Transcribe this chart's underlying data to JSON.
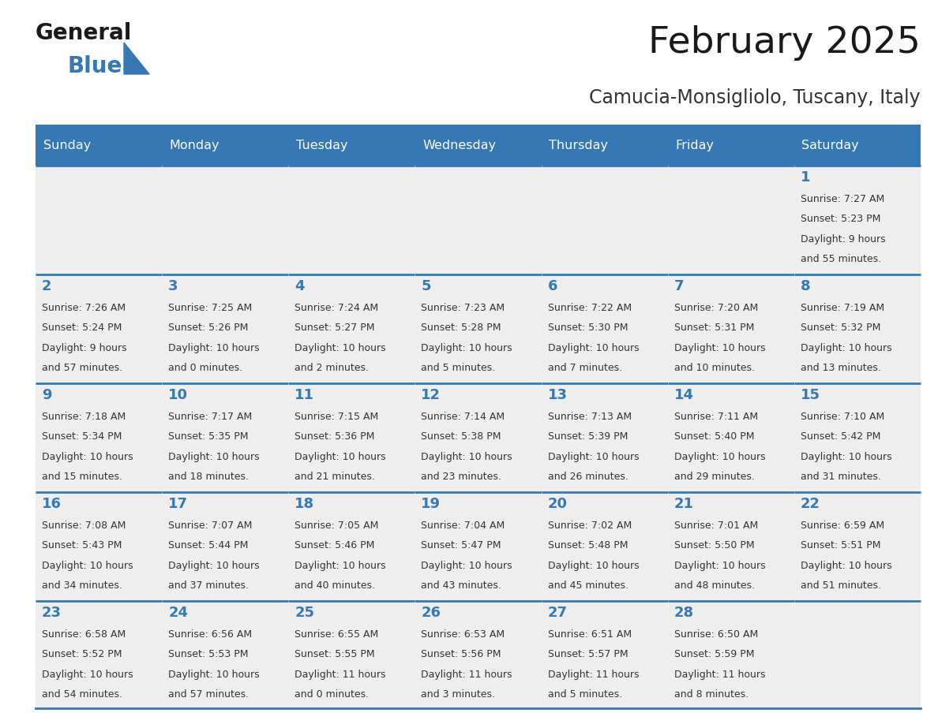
{
  "title": "February 2025",
  "subtitle": "Camucia-Monsigliolo, Tuscany, Italy",
  "header_bg": "#3578b5",
  "header_text": "#ffffff",
  "cell_bg": "#eeeeee",
  "cell_bg2": "#ffffff",
  "day_number_color": "#3578b5",
  "text_color": "#333333",
  "line_color": "#3578b5",
  "days_of_week": [
    "Sunday",
    "Monday",
    "Tuesday",
    "Wednesday",
    "Thursday",
    "Friday",
    "Saturday"
  ],
  "weeks": [
    [
      {
        "day": null,
        "sunrise": null,
        "sunset": null,
        "dl1": null,
        "dl2": null
      },
      {
        "day": null,
        "sunrise": null,
        "sunset": null,
        "dl1": null,
        "dl2": null
      },
      {
        "day": null,
        "sunrise": null,
        "sunset": null,
        "dl1": null,
        "dl2": null
      },
      {
        "day": null,
        "sunrise": null,
        "sunset": null,
        "dl1": null,
        "dl2": null
      },
      {
        "day": null,
        "sunrise": null,
        "sunset": null,
        "dl1": null,
        "dl2": null
      },
      {
        "day": null,
        "sunrise": null,
        "sunset": null,
        "dl1": null,
        "dl2": null
      },
      {
        "day": "1",
        "sunrise": "Sunrise: 7:27 AM",
        "sunset": "Sunset: 5:23 PM",
        "dl1": "Daylight: 9 hours",
        "dl2": "and 55 minutes."
      }
    ],
    [
      {
        "day": "2",
        "sunrise": "Sunrise: 7:26 AM",
        "sunset": "Sunset: 5:24 PM",
        "dl1": "Daylight: 9 hours",
        "dl2": "and 57 minutes."
      },
      {
        "day": "3",
        "sunrise": "Sunrise: 7:25 AM",
        "sunset": "Sunset: 5:26 PM",
        "dl1": "Daylight: 10 hours",
        "dl2": "and 0 minutes."
      },
      {
        "day": "4",
        "sunrise": "Sunrise: 7:24 AM",
        "sunset": "Sunset: 5:27 PM",
        "dl1": "Daylight: 10 hours",
        "dl2": "and 2 minutes."
      },
      {
        "day": "5",
        "sunrise": "Sunrise: 7:23 AM",
        "sunset": "Sunset: 5:28 PM",
        "dl1": "Daylight: 10 hours",
        "dl2": "and 5 minutes."
      },
      {
        "day": "6",
        "sunrise": "Sunrise: 7:22 AM",
        "sunset": "Sunset: 5:30 PM",
        "dl1": "Daylight: 10 hours",
        "dl2": "and 7 minutes."
      },
      {
        "day": "7",
        "sunrise": "Sunrise: 7:20 AM",
        "sunset": "Sunset: 5:31 PM",
        "dl1": "Daylight: 10 hours",
        "dl2": "and 10 minutes."
      },
      {
        "day": "8",
        "sunrise": "Sunrise: 7:19 AM",
        "sunset": "Sunset: 5:32 PM",
        "dl1": "Daylight: 10 hours",
        "dl2": "and 13 minutes."
      }
    ],
    [
      {
        "day": "9",
        "sunrise": "Sunrise: 7:18 AM",
        "sunset": "Sunset: 5:34 PM",
        "dl1": "Daylight: 10 hours",
        "dl2": "and 15 minutes."
      },
      {
        "day": "10",
        "sunrise": "Sunrise: 7:17 AM",
        "sunset": "Sunset: 5:35 PM",
        "dl1": "Daylight: 10 hours",
        "dl2": "and 18 minutes."
      },
      {
        "day": "11",
        "sunrise": "Sunrise: 7:15 AM",
        "sunset": "Sunset: 5:36 PM",
        "dl1": "Daylight: 10 hours",
        "dl2": "and 21 minutes."
      },
      {
        "day": "12",
        "sunrise": "Sunrise: 7:14 AM",
        "sunset": "Sunset: 5:38 PM",
        "dl1": "Daylight: 10 hours",
        "dl2": "and 23 minutes."
      },
      {
        "day": "13",
        "sunrise": "Sunrise: 7:13 AM",
        "sunset": "Sunset: 5:39 PM",
        "dl1": "Daylight: 10 hours",
        "dl2": "and 26 minutes."
      },
      {
        "day": "14",
        "sunrise": "Sunrise: 7:11 AM",
        "sunset": "Sunset: 5:40 PM",
        "dl1": "Daylight: 10 hours",
        "dl2": "and 29 minutes."
      },
      {
        "day": "15",
        "sunrise": "Sunrise: 7:10 AM",
        "sunset": "Sunset: 5:42 PM",
        "dl1": "Daylight: 10 hours",
        "dl2": "and 31 minutes."
      }
    ],
    [
      {
        "day": "16",
        "sunrise": "Sunrise: 7:08 AM",
        "sunset": "Sunset: 5:43 PM",
        "dl1": "Daylight: 10 hours",
        "dl2": "and 34 minutes."
      },
      {
        "day": "17",
        "sunrise": "Sunrise: 7:07 AM",
        "sunset": "Sunset: 5:44 PM",
        "dl1": "Daylight: 10 hours",
        "dl2": "and 37 minutes."
      },
      {
        "day": "18",
        "sunrise": "Sunrise: 7:05 AM",
        "sunset": "Sunset: 5:46 PM",
        "dl1": "Daylight: 10 hours",
        "dl2": "and 40 minutes."
      },
      {
        "day": "19",
        "sunrise": "Sunrise: 7:04 AM",
        "sunset": "Sunset: 5:47 PM",
        "dl1": "Daylight: 10 hours",
        "dl2": "and 43 minutes."
      },
      {
        "day": "20",
        "sunrise": "Sunrise: 7:02 AM",
        "sunset": "Sunset: 5:48 PM",
        "dl1": "Daylight: 10 hours",
        "dl2": "and 45 minutes."
      },
      {
        "day": "21",
        "sunrise": "Sunrise: 7:01 AM",
        "sunset": "Sunset: 5:50 PM",
        "dl1": "Daylight: 10 hours",
        "dl2": "and 48 minutes."
      },
      {
        "day": "22",
        "sunrise": "Sunrise: 6:59 AM",
        "sunset": "Sunset: 5:51 PM",
        "dl1": "Daylight: 10 hours",
        "dl2": "and 51 minutes."
      }
    ],
    [
      {
        "day": "23",
        "sunrise": "Sunrise: 6:58 AM",
        "sunset": "Sunset: 5:52 PM",
        "dl1": "Daylight: 10 hours",
        "dl2": "and 54 minutes."
      },
      {
        "day": "24",
        "sunrise": "Sunrise: 6:56 AM",
        "sunset": "Sunset: 5:53 PM",
        "dl1": "Daylight: 10 hours",
        "dl2": "and 57 minutes."
      },
      {
        "day": "25",
        "sunrise": "Sunrise: 6:55 AM",
        "sunset": "Sunset: 5:55 PM",
        "dl1": "Daylight: 11 hours",
        "dl2": "and 0 minutes."
      },
      {
        "day": "26",
        "sunrise": "Sunrise: 6:53 AM",
        "sunset": "Sunset: 5:56 PM",
        "dl1": "Daylight: 11 hours",
        "dl2": "and 3 minutes."
      },
      {
        "day": "27",
        "sunrise": "Sunrise: 6:51 AM",
        "sunset": "Sunset: 5:57 PM",
        "dl1": "Daylight: 11 hours",
        "dl2": "and 5 minutes."
      },
      {
        "day": "28",
        "sunrise": "Sunrise: 6:50 AM",
        "sunset": "Sunset: 5:59 PM",
        "dl1": "Daylight: 11 hours",
        "dl2": "and 8 minutes."
      },
      {
        "day": null,
        "sunrise": null,
        "sunset": null,
        "dl1": null,
        "dl2": null
      }
    ]
  ],
  "fig_width": 11.88,
  "fig_height": 9.18,
  "dpi": 100
}
